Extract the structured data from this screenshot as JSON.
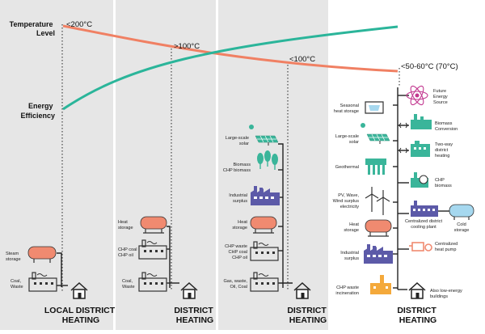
{
  "diagram": {
    "axis_labels": {
      "temperature": [
        "Temperature",
        "Level"
      ],
      "efficiency": [
        "Energy",
        "Efficiency"
      ]
    },
    "temperature_markers": [
      "<200°C",
      ">100°C",
      "<100°C",
      "<50-60°C (70°C)"
    ],
    "generation_titles": [
      [
        "LOCAL DISTRICT",
        "HEATING"
      ],
      [
        "DISTRICT",
        "HEATING"
      ],
      [
        "DISTRICT",
        "HEATING"
      ],
      [
        "DISTRICT",
        "HEATING"
      ]
    ],
    "gen1": {
      "steam": [
        "Steam",
        "storage"
      ],
      "coal": [
        "Coal,",
        "Waste"
      ]
    },
    "gen2": {
      "heat": [
        "Heat",
        "storage"
      ],
      "chp": [
        "CHP coal",
        "CHP oil"
      ],
      "coal": [
        "Coal,",
        "Waste"
      ]
    },
    "gen3": {
      "solar": [
        "Large-scale",
        "solar"
      ],
      "biomass": [
        "Biomass",
        "CHP biomass"
      ],
      "industrial": [
        "Industrial",
        "surplus"
      ],
      "heat": [
        "Heat",
        "storage"
      ],
      "chp": [
        "CHP waste",
        "CHP coal",
        "CHP oil"
      ],
      "gas": [
        "Gas, waste,",
        "Oil, Coal"
      ]
    },
    "gen4_left": {
      "seasonal": [
        "Seasonal",
        "heat storage"
      ],
      "solar": [
        "Large-scale",
        "solar"
      ],
      "geothermal": [
        "Geothermal"
      ],
      "pv": [
        "PV, Wave,",
        "Wind surplus",
        "electricity"
      ],
      "heat": [
        "Heat",
        "storage"
      ],
      "industrial": [
        "Industrial",
        "surplus"
      ],
      "chp": [
        "CHP waste",
        "incineration"
      ]
    },
    "gen4_right": {
      "future": [
        "Future",
        "Energy",
        "Source"
      ],
      "biomass_conv": [
        "Biomass",
        "Conversion"
      ],
      "two_way": [
        "Two-way",
        "district",
        "heating"
      ],
      "chp_bio": [
        "CHP",
        "biomass"
      ],
      "cooling_plant": [
        "Centralized district",
        "cooling plant"
      ],
      "cold_storage": [
        "Cold",
        "storage"
      ],
      "heat_pump": [
        "Centralized",
        "heat pump"
      ],
      "low_energy": [
        "Also low-energy",
        "buildings"
      ]
    }
  },
  "colors": {
    "temperature_curve": "#f08063",
    "efficiency_curve": "#2bb59a",
    "panel_gray": "#e6e6e6",
    "salmon": "#f08a70",
    "purple": "#5c5aa8",
    "teal": "#3ab59a",
    "light_blue": "#a6d8ef",
    "orange": "#f4a93b",
    "magenta": "#c2378f"
  },
  "icons": [
    "factory-icon",
    "house-icon",
    "storage-tank-icon",
    "solar-panel-icon",
    "tree-icon",
    "wind-turbine-icon",
    "atom-icon",
    "geothermal-icon",
    "heat-pump-icon",
    "incinerator-icon"
  ]
}
